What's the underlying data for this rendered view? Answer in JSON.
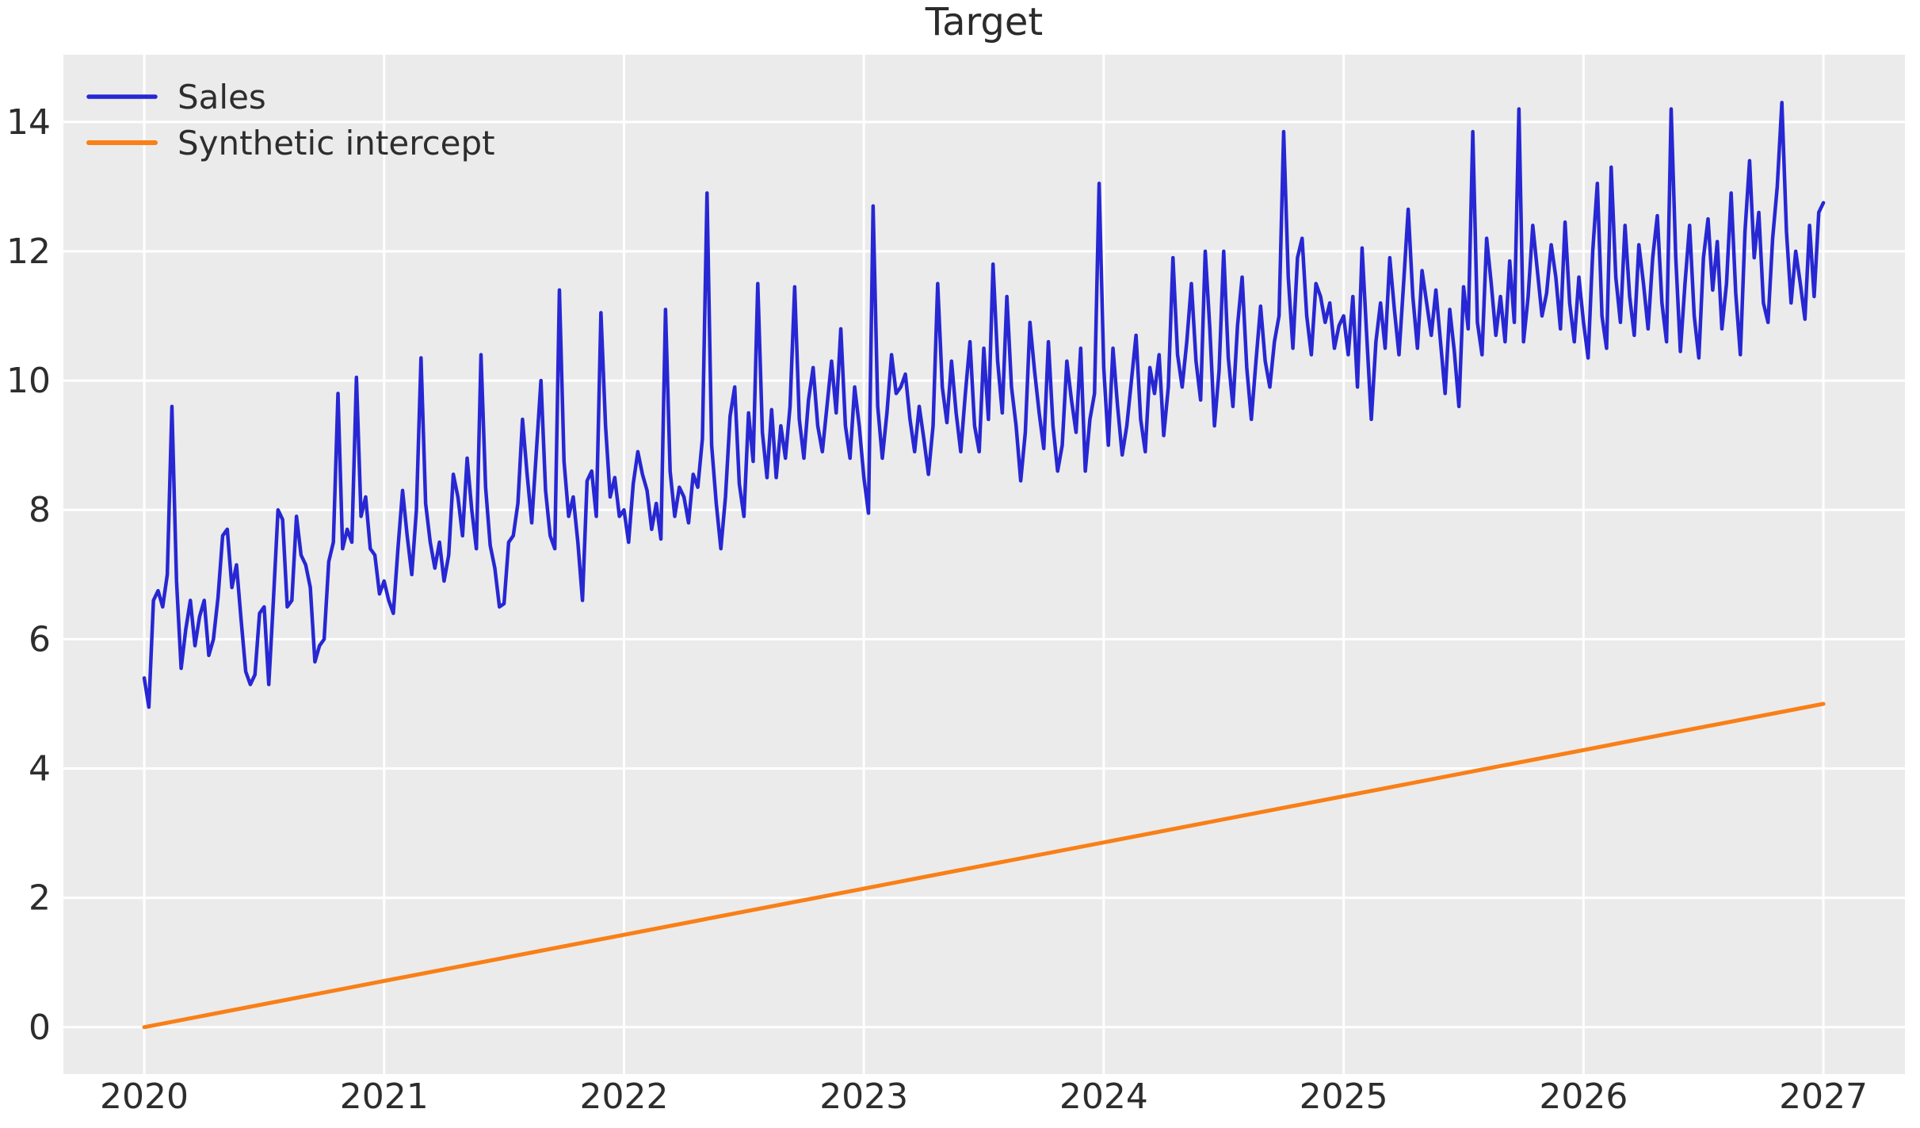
{
  "figure": {
    "background_color": "#ffffff",
    "plot_background_color": "#ebebeb",
    "grid_color": "#ffffff",
    "text_color": "#2d2d2d",
    "title_color": "#2b2b2b"
  },
  "chart_data": {
    "type": "line",
    "title": "Target",
    "xlabel": "",
    "ylabel": "",
    "grid": true,
    "legend_position": "upper left",
    "xlim": [
      2019.663,
      2027.34
    ],
    "ylim": [
      -0.726,
      15.04
    ],
    "x_ticks": [
      2020,
      2021,
      2022,
      2023,
      2024,
      2025,
      2026,
      2027
    ],
    "y_ticks": [
      0,
      2,
      4,
      6,
      8,
      10,
      12,
      14
    ],
    "series": [
      {
        "name": "Sales",
        "color": "#2727d3",
        "line_width": 4.5,
        "x_start": 2020.0,
        "x_step": 0.01923077,
        "values": [
          5.4,
          4.95,
          6.6,
          6.75,
          6.5,
          7.0,
          9.6,
          6.9,
          5.55,
          6.15,
          6.6,
          5.9,
          6.35,
          6.6,
          5.75,
          6.0,
          6.65,
          7.6,
          7.7,
          6.8,
          7.15,
          6.3,
          5.5,
          5.3,
          5.45,
          6.4,
          6.5,
          5.3,
          6.6,
          8.0,
          7.85,
          6.5,
          6.6,
          7.9,
          7.3,
          7.15,
          6.8,
          5.65,
          5.9,
          6.0,
          7.2,
          7.5,
          9.8,
          7.4,
          7.7,
          7.5,
          10.05,
          7.9,
          8.2,
          7.4,
          7.3,
          6.7,
          6.9,
          6.6,
          6.4,
          7.4,
          8.3,
          7.6,
          7.0,
          8.0,
          10.35,
          8.1,
          7.5,
          7.1,
          7.5,
          6.9,
          7.3,
          8.55,
          8.2,
          7.6,
          8.8,
          8.0,
          7.4,
          10.4,
          8.35,
          7.45,
          7.1,
          6.5,
          6.55,
          7.5,
          7.6,
          8.1,
          9.4,
          8.55,
          7.8,
          8.9,
          10.0,
          8.3,
          7.6,
          7.4,
          11.4,
          8.75,
          7.9,
          8.2,
          7.5,
          6.6,
          8.45,
          8.6,
          7.9,
          11.05,
          9.3,
          8.2,
          8.5,
          7.9,
          8.0,
          7.5,
          8.4,
          8.9,
          8.55,
          8.3,
          7.7,
          8.1,
          7.55,
          11.1,
          8.6,
          7.9,
          8.35,
          8.2,
          7.8,
          8.55,
          8.35,
          9.1,
          12.9,
          9.0,
          8.1,
          7.4,
          8.2,
          9.45,
          9.9,
          8.4,
          7.9,
          9.5,
          8.75,
          11.5,
          9.2,
          8.5,
          9.55,
          8.5,
          9.3,
          8.8,
          9.6,
          11.45,
          9.4,
          8.8,
          9.7,
          10.2,
          9.3,
          8.9,
          9.6,
          10.3,
          9.5,
          10.8,
          9.3,
          8.8,
          9.9,
          9.3,
          8.5,
          7.95,
          12.7,
          9.6,
          8.8,
          9.5,
          10.4,
          9.8,
          9.9,
          10.1,
          9.4,
          8.9,
          9.6,
          9.1,
          8.55,
          9.3,
          11.5,
          9.9,
          9.35,
          10.3,
          9.5,
          8.9,
          9.8,
          10.6,
          9.3,
          8.9,
          10.5,
          9.4,
          11.8,
          10.3,
          9.5,
          11.3,
          9.9,
          9.3,
          8.45,
          9.2,
          10.9,
          10.15,
          9.5,
          8.95,
          10.6,
          9.3,
          8.6,
          9.0,
          10.3,
          9.7,
          9.2,
          10.5,
          8.6,
          9.4,
          9.8,
          13.05,
          10.2,
          9.0,
          10.5,
          9.6,
          8.85,
          9.3,
          10.0,
          10.7,
          9.4,
          8.9,
          10.2,
          9.8,
          10.4,
          9.15,
          9.9,
          11.9,
          10.4,
          9.9,
          10.6,
          11.5,
          10.3,
          9.7,
          12.0,
          10.8,
          9.3,
          10.15,
          12.0,
          10.35,
          9.6,
          10.85,
          11.6,
          10.2,
          9.4,
          10.3,
          11.15,
          10.3,
          9.9,
          10.6,
          11.0,
          13.85,
          11.6,
          10.5,
          11.9,
          12.2,
          11.0,
          10.4,
          11.5,
          11.3,
          10.9,
          11.2,
          10.5,
          10.85,
          11.0,
          10.4,
          11.3,
          9.9,
          12.05,
          10.7,
          9.4,
          10.6,
          11.2,
          10.5,
          11.9,
          11.1,
          10.4,
          11.5,
          12.65,
          11.3,
          10.5,
          11.7,
          11.2,
          10.7,
          11.4,
          10.6,
          9.8,
          11.1,
          10.45,
          9.6,
          11.45,
          10.8,
          13.85,
          10.9,
          10.4,
          12.2,
          11.5,
          10.7,
          11.3,
          10.6,
          11.85,
          10.9,
          14.2,
          10.6,
          11.3,
          12.4,
          11.7,
          11.0,
          11.35,
          12.1,
          11.6,
          10.8,
          12.45,
          11.2,
          10.6,
          11.6,
          10.9,
          10.35,
          12.0,
          13.05,
          11.0,
          10.5,
          13.3,
          11.6,
          10.9,
          12.4,
          11.3,
          10.7,
          12.1,
          11.5,
          10.8,
          11.9,
          12.55,
          11.2,
          10.6,
          14.2,
          11.9,
          10.45,
          11.5,
          12.4,
          11.0,
          10.35,
          11.9,
          12.5,
          11.4,
          12.15,
          10.8,
          11.5,
          12.9,
          11.35,
          10.4,
          12.3,
          13.4,
          11.9,
          12.6,
          11.2,
          10.9,
          12.2,
          13.0,
          14.3,
          12.3,
          11.2,
          12.0,
          11.5,
          10.95,
          12.4,
          11.3,
          12.6,
          12.75
        ]
      },
      {
        "name": "Synthetic intercept",
        "color": "#f97f17",
        "line_width": 5,
        "x": [
          2020.0,
          2027.0
        ],
        "values": [
          0.0,
          5.0
        ]
      }
    ]
  }
}
